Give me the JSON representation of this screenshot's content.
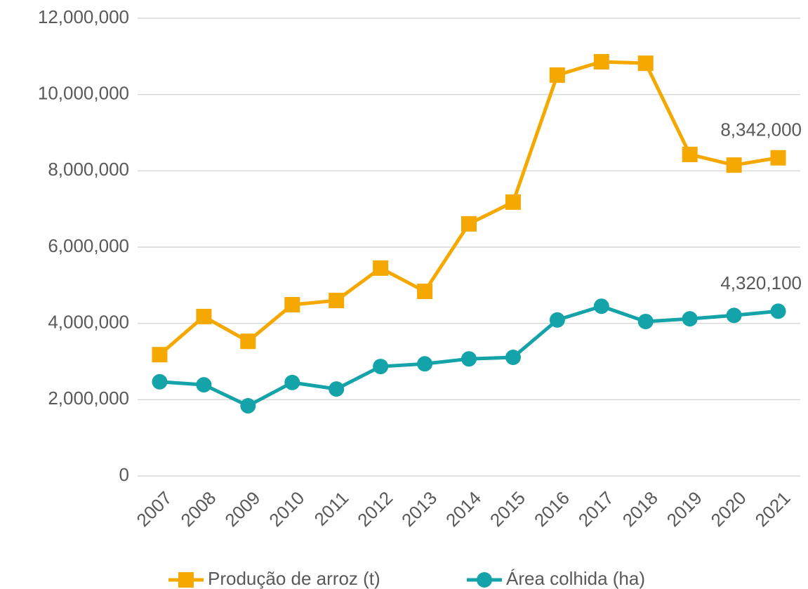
{
  "chart_data": {
    "type": "line",
    "categories": [
      "2007",
      "2008",
      "2009",
      "2010",
      "2011",
      "2012",
      "2013",
      "2014",
      "2015",
      "2016",
      "2017",
      "2018",
      "2019",
      "2020",
      "2021"
    ],
    "series": [
      {
        "name": "Produção de arroz (t)",
        "color": "#f5a800",
        "marker": "square",
        "values": [
          3180000,
          4180000,
          3530000,
          4490000,
          4600000,
          5450000,
          4840000,
          6610000,
          7180000,
          10510000,
          10860000,
          10820000,
          8430000,
          8150000,
          8342000
        ],
        "value_labels": [
          null,
          null,
          null,
          null,
          null,
          null,
          null,
          null,
          null,
          null,
          null,
          null,
          null,
          null,
          "8,342,000"
        ]
      },
      {
        "name": "Área colhida (ha)",
        "color": "#13a3a8",
        "marker": "circle",
        "values": [
          2470000,
          2390000,
          1840000,
          2450000,
          2280000,
          2870000,
          2940000,
          3070000,
          3110000,
          4090000,
          4450000,
          4050000,
          4120000,
          4210000,
          4320100
        ],
        "value_labels": [
          null,
          null,
          null,
          null,
          null,
          null,
          null,
          null,
          null,
          null,
          null,
          null,
          null,
          null,
          "4,320,100"
        ]
      }
    ],
    "ylim": [
      0,
      12000000
    ],
    "yticks": [
      0,
      {
        "value": 2000000,
        "label": "2,000,000"
      },
      {
        "value": 4000000,
        "label": "4,000,000"
      },
      {
        "value": 6000000,
        "label": "6,000,000"
      },
      {
        "value": 8000000,
        "label": "8,000,000"
      },
      {
        "value": 10000000,
        "label": "10,000,000"
      },
      {
        "value": 12000000,
        "label": "12,000,000"
      }
    ],
    "grid": true,
    "legend": "bottom"
  }
}
